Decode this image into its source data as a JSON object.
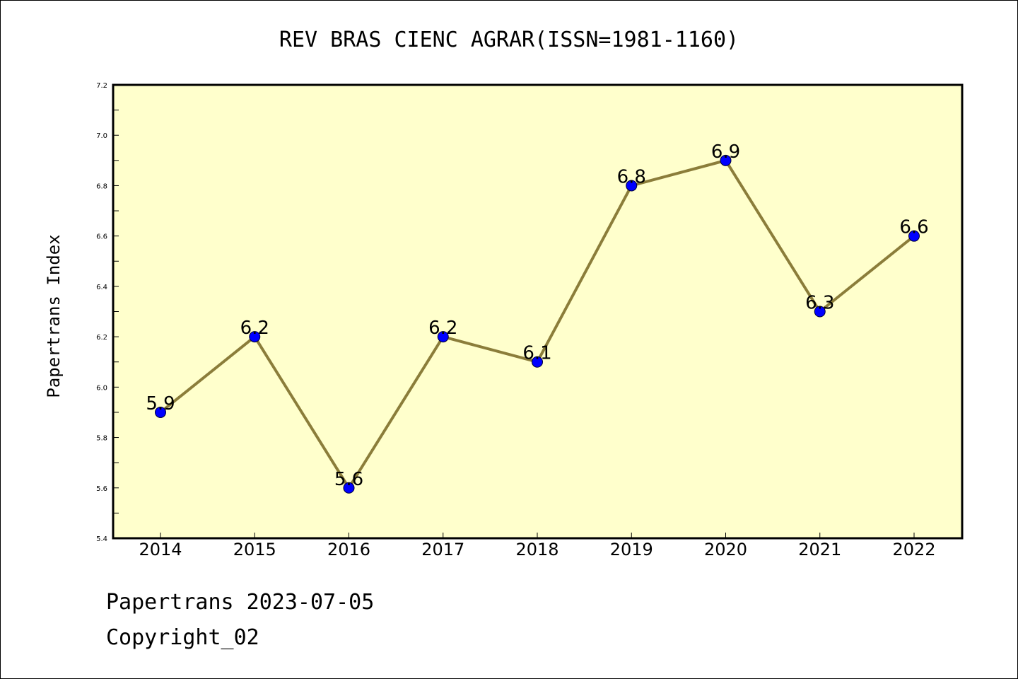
{
  "chart_data": {
    "type": "line",
    "title": "REV BRAS CIENC AGRAR(ISSN=1981-1160)",
    "xlabel": "",
    "ylabel": "Papertrans Index",
    "categories": [
      "2014",
      "2015",
      "2016",
      "2017",
      "2018",
      "2019",
      "2020",
      "2021",
      "2022"
    ],
    "series": [
      {
        "values": [
          5.9,
          6.2,
          5.6,
          6.2,
          6.1,
          6.8,
          6.9,
          6.3,
          6.6
        ]
      }
    ],
    "data_labels": [
      "5.9",
      "6.2",
      "5.6",
      "6.2",
      "6.1",
      "6.8",
      "6.9",
      "6.3",
      "6.6"
    ],
    "ylim": [
      5.4,
      7.2
    ],
    "yticks": [
      "5.4",
      "5.6",
      "5.8",
      "6.0",
      "6.2",
      "6.4",
      "6.6",
      "6.8",
      "7.0",
      "7.2"
    ],
    "grid": false,
    "colors": {
      "plot_background": "#ffffcc",
      "line": "#8b7d3a",
      "marker": "#0000ff"
    }
  },
  "footer": {
    "line1": "Papertrans 2023-07-05",
    "line2": "Copyright_02"
  }
}
